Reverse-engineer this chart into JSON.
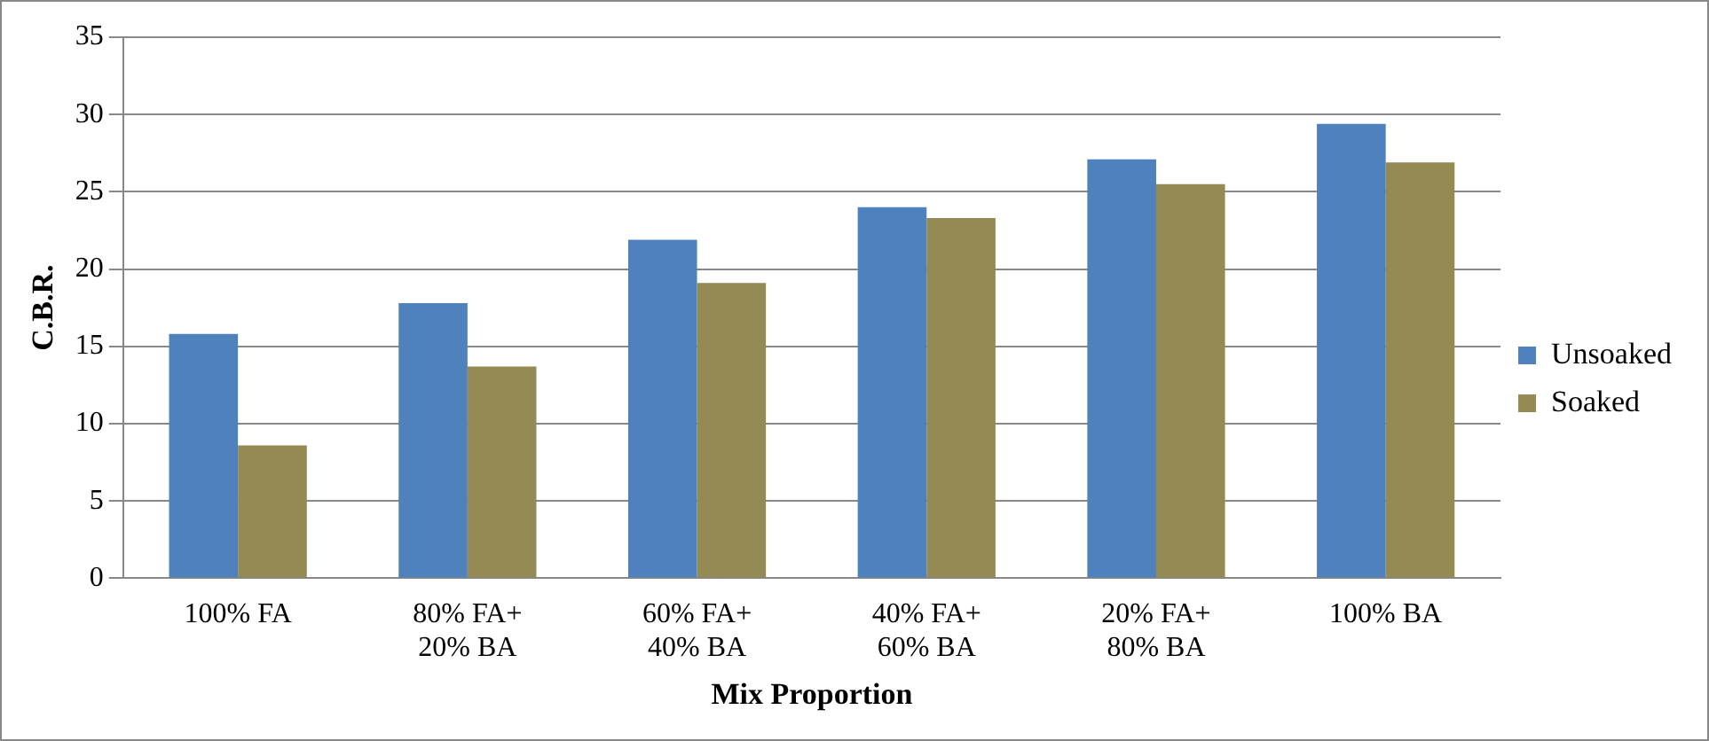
{
  "chart_data": {
    "type": "bar",
    "xlabel": "Mix Proportion",
    "ylabel": "C.B.R.",
    "categories": [
      "100% FA",
      "80% FA+\n20% BA",
      "60% FA+\n40% BA",
      "40% FA+\n60% BA",
      "20% FA+\n80% BA",
      "100% BA"
    ],
    "series": [
      {
        "name": "Unsoaked",
        "color": "#4f81bd",
        "values": [
          15.8,
          17.8,
          21.9,
          24.0,
          27.1,
          29.4
        ]
      },
      {
        "name": "Soaked",
        "color": "#948a54",
        "values": [
          8.6,
          13.7,
          19.1,
          23.3,
          25.5,
          26.9
        ]
      }
    ],
    "ylim": [
      0,
      35
    ],
    "yticks": [
      0,
      5,
      10,
      15,
      20,
      25,
      30,
      35
    ],
    "grid": "y",
    "legend": "right"
  }
}
